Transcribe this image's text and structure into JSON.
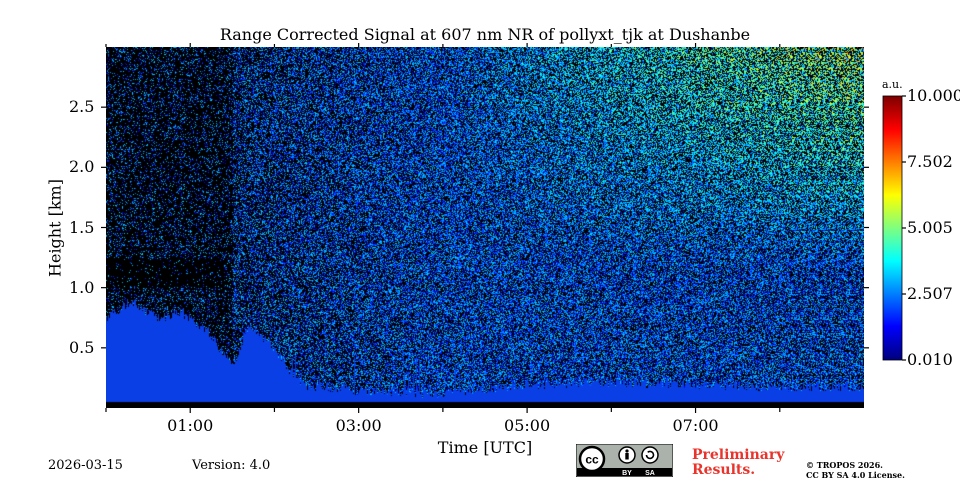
{
  "chart_data": {
    "type": "heatmap",
    "title": "Range Corrected Signal at 607 nm NR of pollyxt_tjk at Dushanbe",
    "xlabel": "Time [UTC]",
    "ylabel": "Height [km]",
    "xlim_hours": [
      0.0,
      9.0
    ],
    "ylim_km": [
      0.0,
      3.0
    ],
    "xticks": [
      {
        "value": 1,
        "label": "01:00"
      },
      {
        "value": 3,
        "label": "03:00"
      },
      {
        "value": 5,
        "label": "05:00"
      },
      {
        "value": 7,
        "label": "07:00"
      }
    ],
    "xminor_ticks": [
      0,
      2,
      4,
      6,
      8
    ],
    "yticks": [
      {
        "value": 0.5,
        "label": "0.5"
      },
      {
        "value": 1.0,
        "label": "1.0"
      },
      {
        "value": 1.5,
        "label": "1.5"
      },
      {
        "value": 2.0,
        "label": "2.0"
      },
      {
        "value": 2.5,
        "label": "2.5"
      }
    ],
    "colorbar": {
      "unit": "a.u.",
      "range": [
        0.01,
        10.0
      ],
      "ticks": [
        "10.000",
        "7.502",
        "5.005",
        "2.507",
        "0.010"
      ],
      "colormap": "jet"
    },
    "features": {
      "nighttime_dark_until_hours": 1.5,
      "noise_transition_end_hours": 4.2,
      "boundary_layer_top_km": [
        {
          "t": 0.0,
          "h": 0.75
        },
        {
          "t": 0.3,
          "h": 0.9
        },
        {
          "t": 0.6,
          "h": 0.75
        },
        {
          "t": 0.9,
          "h": 0.8
        },
        {
          "t": 1.2,
          "h": 0.65
        },
        {
          "t": 1.5,
          "h": 0.35
        },
        {
          "t": 1.7,
          "h": 0.7
        },
        {
          "t": 2.0,
          "h": 0.5
        },
        {
          "t": 2.3,
          "h": 0.2
        },
        {
          "t": 3.0,
          "h": 0.15
        },
        {
          "t": 4.0,
          "h": 0.12
        },
        {
          "t": 5.0,
          "h": 0.2
        },
        {
          "t": 6.0,
          "h": 0.22
        },
        {
          "t": 7.0,
          "h": 0.2
        },
        {
          "t": 8.0,
          "h": 0.18
        },
        {
          "t": 9.0,
          "h": 0.18
        }
      ],
      "elevated_dark_layer_km": [
        1.0,
        1.25
      ],
      "elevated_dark_layer_hours": [
        0.0,
        1.4
      ]
    }
  },
  "footer": {
    "date": "2026-03-15",
    "version": "Version: 4.0",
    "preliminary": "Preliminary Results.",
    "license_line1": "© TROPOS 2026.",
    "license_line2": "CC BY SA 4.0 License.",
    "cc_badge_text": [
      "cc",
      "BY",
      "SA"
    ]
  },
  "colors": {
    "background": "#ffffff",
    "no_signal": "#000000",
    "low_signal": "#0a3fe6",
    "preliminary_text": "#e8342c"
  }
}
